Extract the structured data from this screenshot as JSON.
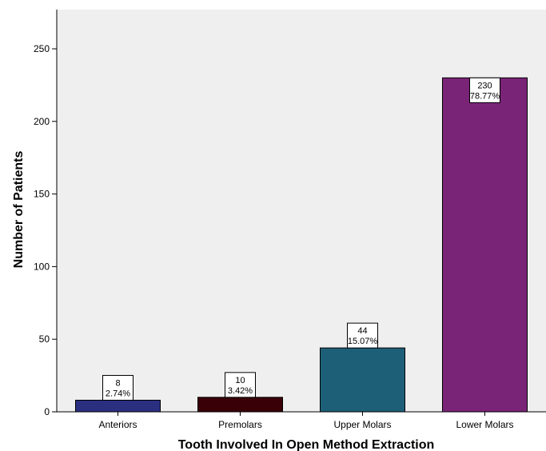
{
  "chart_data": {
    "type": "bar",
    "title": "",
    "xlabel": "Tooth Involved In Open Method Extraction",
    "ylabel": "Number of Patients",
    "categories": [
      "Anteriors",
      "Premolars",
      "Upper Molars",
      "Lower Molars"
    ],
    "values": [
      8,
      10,
      44,
      230
    ],
    "value_labels": [
      "8",
      "10",
      "44",
      "230"
    ],
    "percent_labels": [
      "2.74%",
      "3.42%",
      "15.07%",
      "78.77%"
    ],
    "colors": [
      "#2a2f80",
      "#3a0008",
      "#1e5f78",
      "#7a2478"
    ],
    "ylim": [
      0,
      277
    ],
    "yticks": [
      0,
      50,
      100,
      150,
      200,
      250
    ],
    "grid": false,
    "legend": "none",
    "plot_background": "#efefef"
  }
}
